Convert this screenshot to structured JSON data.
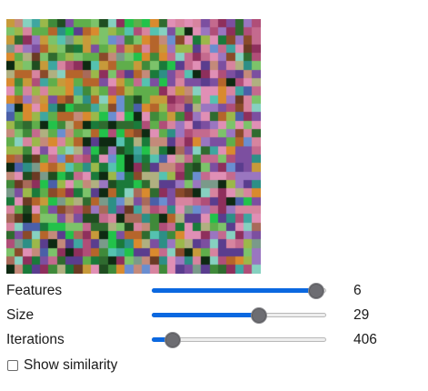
{
  "controls": {
    "features": {
      "label": "Features",
      "value": "6",
      "fraction": 0.945
    },
    "size": {
      "label": "Size",
      "value": "29",
      "fraction": 0.615
    },
    "iterations": {
      "label": "Iterations",
      "value": "406",
      "fraction": 0.12
    }
  },
  "show_similarity": {
    "label": "Show similarity",
    "checked": false
  },
  "mosaic": {
    "grid": 30,
    "palette": [
      "#3f8a3a",
      "#5fae4b",
      "#7cc36a",
      "#2f6b2f",
      "#1f4d20",
      "#9bb84a",
      "#c79a3a",
      "#d98a2e",
      "#b5652b",
      "#8a4a2a",
      "#6b3a24",
      "#c46a8e",
      "#d7849f",
      "#b04e78",
      "#8e2f5c",
      "#e08fb5",
      "#7c4fa0",
      "#5a3d8e",
      "#9a76c0",
      "#4a5fa8",
      "#6a8ed0",
      "#3fa6a0",
      "#55c2b0",
      "#2d8f86",
      "#86d1c0",
      "#a86a5a",
      "#c48a7a",
      "#7a9a8a",
      "#b0b080",
      "#1a7a3a",
      "#22c24a",
      "#0e2a12"
    ]
  }
}
